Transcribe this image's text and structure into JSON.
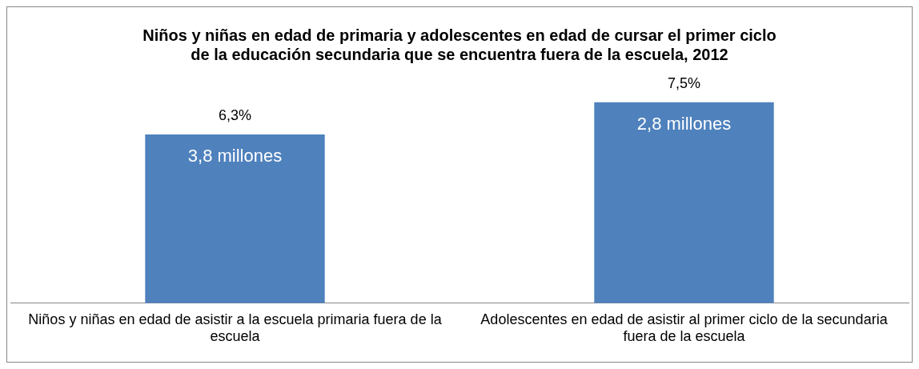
{
  "chart_data": {
    "type": "bar",
    "title": "Niños y niñas en edad de primaria y adolescentes en edad de cursar el primer ciclo de la educación secundaria que se encuentra fuera de la escuela, 2012",
    "categories": [
      "Niños y niñas en edad de asistir a la escuela primaria fuera de la escuela",
      "Adolescentes en edad de asistir al primer ciclo de la secundaria fuera de la escuela"
    ],
    "values": [
      6.3,
      7.5
    ],
    "value_labels": [
      "6,3%",
      "7,5%"
    ],
    "color": "#4f81bd",
    "annotations": [
      "3,8 millones",
      "2,8 millones"
    ],
    "grid": false,
    "legend": false
  }
}
